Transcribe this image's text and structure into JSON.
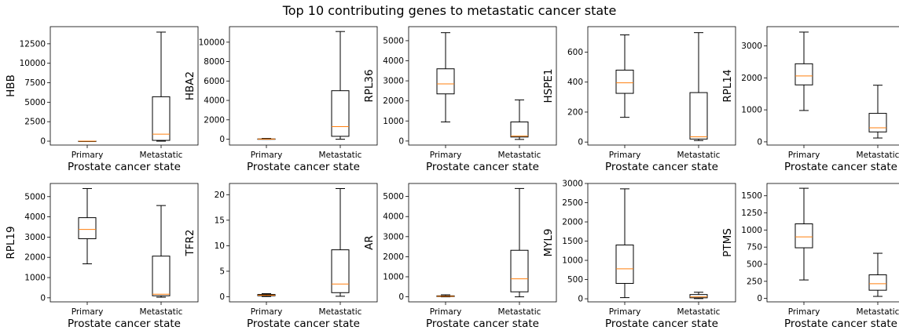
{
  "figure_title": "Top 10 contributing genes to metastatic cancer state",
  "chart_data": [
    {
      "type": "box",
      "ylabel": "HBB",
      "xlabel": "Prostate cancer state",
      "categories": [
        "Primary",
        "Metastatic"
      ],
      "ylim": [
        -500,
        14700
      ],
      "yticks": [
        0,
        2500,
        5000,
        7500,
        10000,
        12500
      ],
      "boxes": [
        {
          "whislo": 0,
          "q1": 0,
          "med": 0,
          "q3": 0,
          "whishi": 0
        },
        {
          "whislo": 0,
          "q1": 100,
          "med": 900,
          "q3": 5700,
          "whishi": 14000
        }
      ]
    },
    {
      "type": "box",
      "ylabel": "HBA2",
      "xlabel": "Prostate cancer state",
      "categories": [
        "Primary",
        "Metastatic"
      ],
      "ylim": [
        -600,
        11600
      ],
      "yticks": [
        0,
        2000,
        4000,
        6000,
        8000,
        10000
      ],
      "boxes": [
        {
          "whislo": 0,
          "q1": 5,
          "med": 15,
          "q3": 30,
          "whishi": 80
        },
        {
          "whislo": 0,
          "q1": 300,
          "med": 1300,
          "q3": 5000,
          "whishi": 11100
        }
      ]
    },
    {
      "type": "box",
      "ylabel": "RPL36",
      "xlabel": "Prostate cancer state",
      "categories": [
        "Primary",
        "Metastatic"
      ],
      "ylim": [
        -200,
        5700
      ],
      "yticks": [
        0,
        1000,
        2000,
        3000,
        4000,
        5000
      ],
      "boxes": [
        {
          "whislo": 950,
          "q1": 2350,
          "med": 2850,
          "q3": 3600,
          "whishi": 5400
        },
        {
          "whislo": 80,
          "q1": 200,
          "med": 250,
          "q3": 950,
          "whishi": 2050
        }
      ]
    },
    {
      "type": "box",
      "ylabel": "HSPE1",
      "xlabel": "Prostate cancer state",
      "categories": [
        "Primary",
        "Metastatic"
      ],
      "ylim": [
        -20,
        770
      ],
      "yticks": [
        0,
        200,
        400,
        600
      ],
      "boxes": [
        {
          "whislo": 165,
          "q1": 325,
          "med": 395,
          "q3": 480,
          "whishi": 715
        },
        {
          "whislo": 10,
          "q1": 20,
          "med": 35,
          "q3": 330,
          "whishi": 730
        }
      ]
    },
    {
      "type": "box",
      "ylabel": "RPL14",
      "xlabel": "Prostate cancer state",
      "categories": [
        "Primary",
        "Metastatic"
      ],
      "ylim": [
        -100,
        3600
      ],
      "yticks": [
        0,
        1000,
        2000,
        3000
      ],
      "boxes": [
        {
          "whislo": 980,
          "q1": 1780,
          "med": 2060,
          "q3": 2440,
          "whishi": 3430
        },
        {
          "whislo": 120,
          "q1": 310,
          "med": 440,
          "q3": 890,
          "whishi": 1770
        }
      ]
    },
    {
      "type": "box",
      "ylabel": "RPL19",
      "xlabel": "Prostate cancer state",
      "categories": [
        "Primary",
        "Metastatic"
      ],
      "ylim": [
        -200,
        5650
      ],
      "yticks": [
        0,
        1000,
        2000,
        3000,
        4000,
        5000
      ],
      "boxes": [
        {
          "whislo": 1680,
          "q1": 2920,
          "med": 3380,
          "q3": 3960,
          "whishi": 5400
        },
        {
          "whislo": 30,
          "q1": 100,
          "med": 180,
          "q3": 2060,
          "whishi": 4560
        }
      ]
    },
    {
      "type": "box",
      "ylabel": "TFR2",
      "xlabel": "Prostate cancer state",
      "categories": [
        "Primary",
        "Metastatic"
      ],
      "ylim": [
        -1,
        22.2
      ],
      "yticks": [
        0,
        5,
        10,
        15,
        20
      ],
      "boxes": [
        {
          "whislo": 0.05,
          "q1": 0.2,
          "med": 0.3,
          "q3": 0.45,
          "whishi": 0.6
        },
        {
          "whislo": 0.1,
          "q1": 0.8,
          "med": 2.5,
          "q3": 9.2,
          "whishi": 21.2
        }
      ]
    },
    {
      "type": "box",
      "ylabel": "AR",
      "xlabel": "Prostate cancer state",
      "categories": [
        "Primary",
        "Metastatic"
      ],
      "ylim": [
        -250,
        5650
      ],
      "yticks": [
        0,
        1000,
        2000,
        3000,
        4000,
        5000
      ],
      "boxes": [
        {
          "whislo": 0,
          "q1": 15,
          "med": 30,
          "q3": 50,
          "whishi": 100
        },
        {
          "whislo": 0,
          "q1": 250,
          "med": 900,
          "q3": 2320,
          "whishi": 5400
        }
      ]
    },
    {
      "type": "box",
      "ylabel": "MYL9",
      "xlabel": "Prostate cancer state",
      "categories": [
        "Primary",
        "Metastatic"
      ],
      "ylim": [
        -80,
        3000
      ],
      "yticks": [
        0,
        500,
        1000,
        1500,
        2000,
        2500,
        3000
      ],
      "boxes": [
        {
          "whislo": 30,
          "q1": 400,
          "med": 780,
          "q3": 1400,
          "whishi": 2860
        },
        {
          "whislo": 5,
          "q1": 25,
          "med": 50,
          "q3": 110,
          "whishi": 170
        }
      ]
    },
    {
      "type": "box",
      "ylabel": "PTMS",
      "xlabel": "Prostate cancer state",
      "categories": [
        "Primary",
        "Metastatic"
      ],
      "ylim": [
        -50,
        1680
      ],
      "yticks": [
        0,
        250,
        500,
        750,
        1000,
        1250,
        1500
      ],
      "boxes": [
        {
          "whislo": 270,
          "q1": 740,
          "med": 900,
          "q3": 1090,
          "whishi": 1610
        },
        {
          "whislo": 30,
          "q1": 120,
          "med": 215,
          "q3": 345,
          "whishi": 660
        }
      ]
    }
  ]
}
